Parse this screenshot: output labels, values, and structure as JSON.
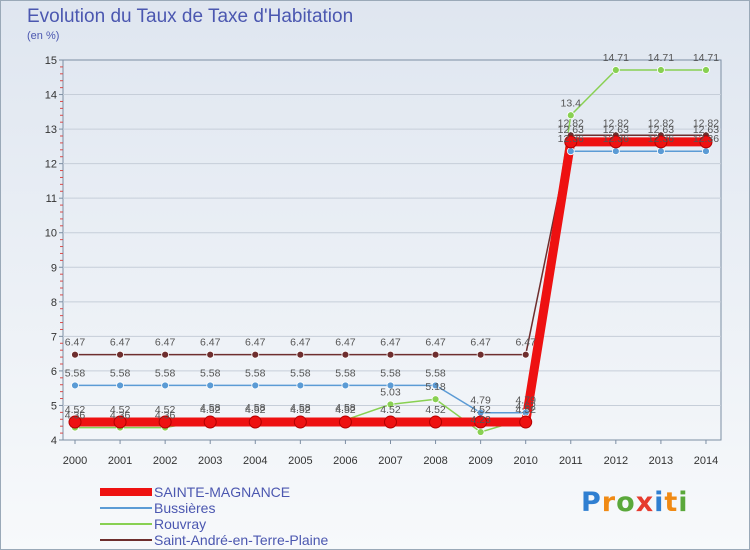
{
  "title": "Evolution du Taux de Taxe d'Habitation",
  "unit": "(en %)",
  "chart_data": {
    "type": "line",
    "title": "Evolution du Taux de Taxe d'Habitation",
    "ylabel": "(en %)",
    "xlabel": "",
    "x": [
      "2000",
      "2001",
      "2002",
      "2003",
      "2004",
      "2005",
      "2006",
      "2007",
      "2008",
      "2009",
      "2010",
      "2011",
      "2012",
      "2013",
      "2014"
    ],
    "ylim": [
      4,
      15
    ],
    "yticks": [
      "4",
      "5",
      "6",
      "7",
      "8",
      "9",
      "10",
      "11",
      "12",
      "13",
      "14",
      "15"
    ],
    "series": [
      {
        "name": "SAINTE-MAGNANCE",
        "color": "#ee1111",
        "values": [
          4.52,
          4.52,
          4.52,
          4.52,
          4.52,
          4.52,
          4.52,
          4.52,
          4.52,
          4.52,
          4.52,
          12.63,
          12.63,
          12.63,
          12.63
        ],
        "labels": [
          "4.52",
          "4.52",
          "4.52",
          "4.52",
          "4.52",
          "4.52",
          "4.52",
          "4.52",
          "4.52",
          "4.52",
          "4.52",
          "12.63",
          "12.63",
          "12.63",
          "12.63"
        ]
      },
      {
        "name": "Bussières",
        "color": "#5b9bd5",
        "values": [
          5.58,
          5.58,
          5.58,
          5.58,
          5.58,
          5.58,
          5.58,
          5.58,
          5.58,
          4.79,
          4.79,
          12.36,
          12.36,
          12.36,
          12.36
        ],
        "labels": [
          "5.58",
          "5.58",
          "5.58",
          "5.58",
          "5.58",
          "5.58",
          "5.58",
          "5.58",
          "5.58",
          "4.79",
          "4.79",
          "12.36",
          "12.36",
          "12.36",
          "12.36"
        ]
      },
      {
        "name": "Rouvray",
        "color": "#88d052",
        "values": [
          4.36,
          4.36,
          4.36,
          4.58,
          4.58,
          4.58,
          4.58,
          5.03,
          5.18,
          4.23,
          4.62,
          13.4,
          14.71,
          14.71,
          14.71
        ],
        "labels": [
          "4.36",
          "4.36",
          "4.36",
          "4.58",
          "4.58",
          "4.58",
          "4.58",
          "5.03",
          "5.18",
          "4.23",
          "4.62",
          "13.4",
          "14.71",
          "14.71",
          "14.71"
        ]
      },
      {
        "name": "Saint-André-en-Terre-Plaine",
        "color": "#6e2e2e",
        "values": [
          6.47,
          6.47,
          6.47,
          6.47,
          6.47,
          6.47,
          6.47,
          6.47,
          6.47,
          6.47,
          6.47,
          12.82,
          12.82,
          12.82,
          12.82
        ],
        "labels": [
          "6.47",
          "6.47",
          "6.47",
          "6.47",
          "6.47",
          "6.47",
          "6.47",
          "6.47",
          "6.47",
          "6.47",
          "6.47",
          "12.82",
          "12.82",
          "12.82",
          "12.82"
        ]
      }
    ],
    "legend_position": "bottom-left"
  },
  "logo": {
    "letters": [
      "P",
      "r",
      "o",
      "x",
      "i",
      "t",
      "i"
    ],
    "colors": [
      "#2f7fd1",
      "#f08a14",
      "#5aa83a",
      "#e63b2e",
      "#2f7fd1",
      "#f08a14",
      "#5aa83a"
    ]
  }
}
